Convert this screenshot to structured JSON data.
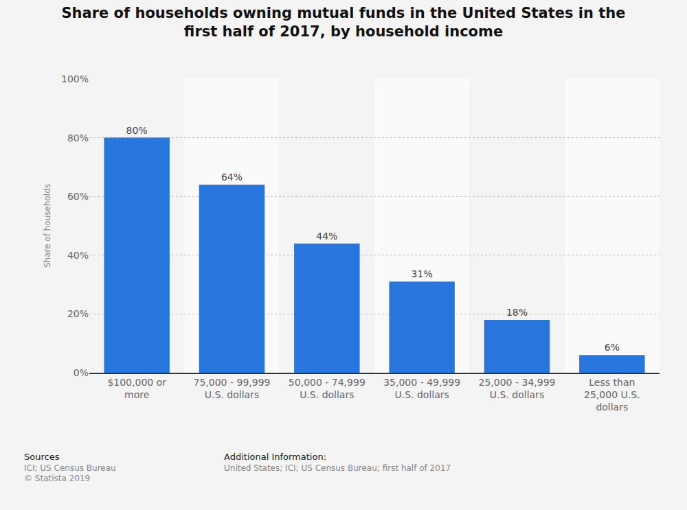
{
  "chart_data": {
    "type": "bar",
    "title": "Share of households owning mutual funds in the United States in the first half of 2017, by household income",
    "y_label": "Share of households",
    "categories": [
      "$100,000 or more",
      "75,000 - 99,999 U.S. dollars",
      "50,000 - 74,999 U.S. dollars",
      "35,000 - 49,999 U.S. dollars",
      "25,000 - 34,999 U.S. dollars",
      "Less than 25,000 U.S. dollars"
    ],
    "values": [
      80,
      64,
      44,
      31,
      18,
      6
    ],
    "value_labels": [
      "80%",
      "64%",
      "44%",
      "31%",
      "18%",
      "6%"
    ],
    "color": "#2876dd",
    "ylim": [
      0,
      100
    ],
    "yticks": [
      {
        "value": 0,
        "label": "0%"
      },
      {
        "value": 20,
        "label": "20%"
      },
      {
        "value": 40,
        "label": "40%"
      },
      {
        "value": 60,
        "label": "60%"
      },
      {
        "value": 80,
        "label": "80%"
      },
      {
        "value": 100,
        "label": "100%"
      }
    ],
    "grid": true,
    "data_labels": true,
    "annotations": [
      "Sources",
      "ICI; US Census Bureau",
      "© Statista 2019",
      "Additional Information:",
      "United States; ICI; US Census Bureau; first half of 2017"
    ]
  }
}
